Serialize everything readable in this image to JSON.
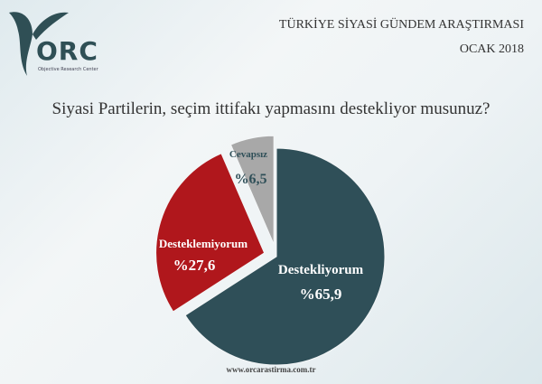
{
  "logo": {
    "text": "ORC",
    "subtitle": "Objective Research Center",
    "color": "#2f4f55"
  },
  "header": {
    "title": "TÜRKİYE SİYASİ GÜNDEM ARAŞTIRMASI",
    "date": "OCAK 2018"
  },
  "chart_data": {
    "type": "pie",
    "title": "Siyasi Partilerin, seçim ittifakı yapmasını destekliyor musunuz?",
    "slices": [
      {
        "label": "Destekliyorum",
        "value": 65.9,
        "value_label": "%65,9",
        "color": "#2f4f58",
        "exploded": false
      },
      {
        "label": "Desteklemiyorum",
        "value": 27.6,
        "value_label": "%27,6",
        "color": "#b0171c",
        "exploded": true
      },
      {
        "label": "Cevapsız",
        "value": 6.5,
        "value_label": "%6,5",
        "color": "#a8a8a8",
        "exploded": true
      }
    ],
    "start_angle": "top",
    "direction": "clockwise",
    "legend": "none"
  },
  "footer": {
    "url": "www.orcarastirma.com.tr"
  }
}
